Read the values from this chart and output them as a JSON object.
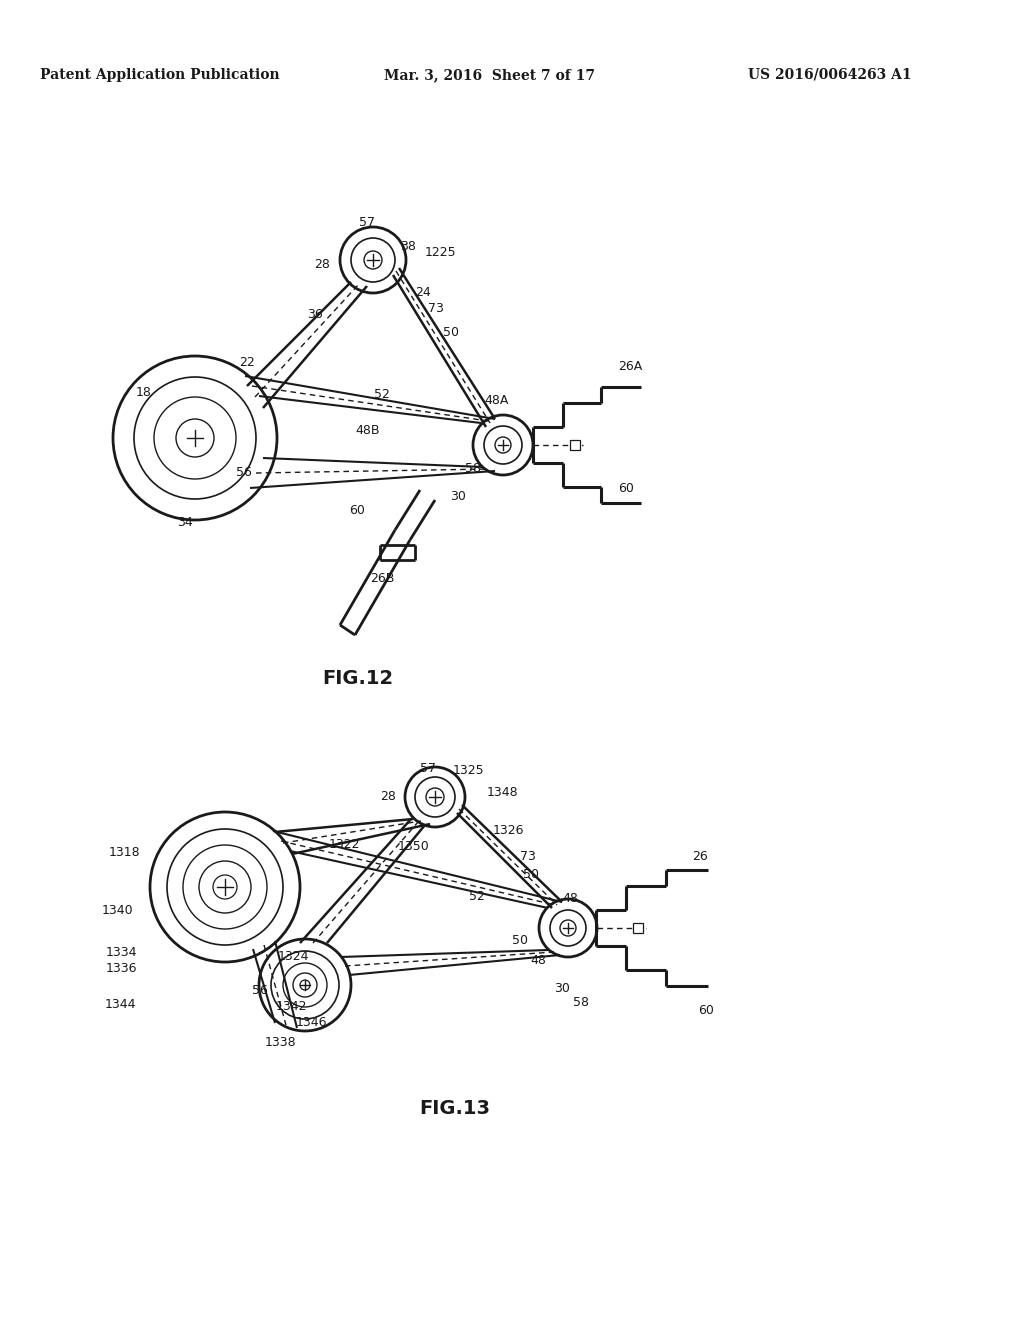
{
  "background_color": "#ffffff",
  "header_left": "Patent Application Publication",
  "header_center": "Mar. 3, 2016  Sheet 7 of 17",
  "header_right": "US 2016/0064263 A1",
  "fig12_label": "FIG.12",
  "fig13_label": "FIG.13",
  "lc": "#1a1a1a",
  "tc": "#1a1a1a"
}
